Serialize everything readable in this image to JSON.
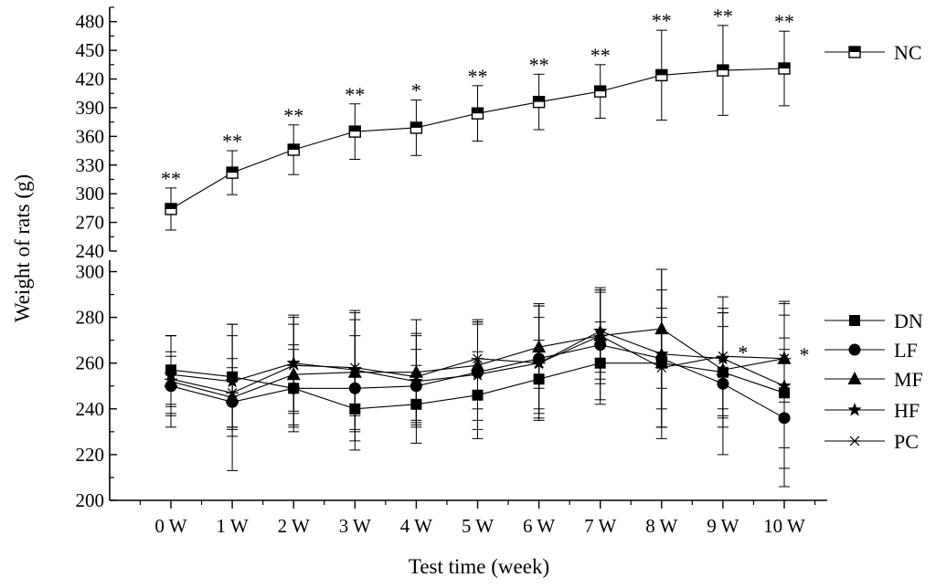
{
  "chart_data": {
    "type": "line",
    "xlabel": "Test time (week)",
    "ylabel": "Weight of rats (g)",
    "categories": [
      "0 W",
      "1 W",
      "2 W",
      "3 W",
      "4 W",
      "5 W",
      "6 W",
      "7 W",
      "8 W",
      "9 W",
      "10 W"
    ],
    "panels": [
      {
        "name": "upper",
        "ylim": [
          240,
          495
        ],
        "yticks": [
          240,
          270,
          300,
          330,
          360,
          390,
          420,
          450,
          480
        ],
        "series": [
          {
            "name": "NC",
            "marker": "half-square",
            "values": [
              284,
              322,
              346,
              365,
              369,
              384,
              396,
              407,
              424,
              429,
              431
            ],
            "errors": [
              22,
              23,
              26,
              29,
              29,
              29,
              29,
              28,
              47,
              47,
              39
            ],
            "significance": [
              "**",
              "**",
              "**",
              "**",
              "*",
              "**",
              "**",
              "**",
              "**",
              "**",
              "**"
            ]
          }
        ]
      },
      {
        "name": "lower",
        "ylim": [
          200,
          305
        ],
        "yticks": [
          200,
          220,
          240,
          260,
          280,
          300
        ],
        "series": [
          {
            "name": "DN",
            "marker": "square",
            "values": [
              257,
              254,
              249,
              240,
              242,
              246,
              253,
              260,
              260,
              256,
              247
            ],
            "errors": [
              15,
              23,
              19,
              18,
              17,
              19,
              17,
              18,
              20,
              20,
              24
            ]
          },
          {
            "name": "LF",
            "marker": "circle",
            "values": [
              250,
              243,
              249,
              249,
              250,
              256,
              262,
              268,
              262,
              251,
              236
            ],
            "errors": [
              13,
              15,
              17,
              23,
              16,
              21,
              24,
              24,
              30,
              31,
              30
            ]
          },
          {
            "name": "MF",
            "marker": "triangle",
            "values": [
              252,
              245,
              255,
              256,
              256,
              259,
              267,
              272,
              275,
              257,
              262
            ],
            "errors": [
              20,
              32,
              22,
              26,
              23,
              19,
              18,
              19,
              26,
              25,
              25
            ]
          },
          {
            "name": "HF",
            "marker": "star",
            "values": [
              255,
              252,
              260,
              257,
              252,
              255,
              260,
              274,
              264,
              262,
              250
            ],
            "errors": [
              17,
              20,
              21,
              26,
              20,
              24,
              25,
              18,
              37,
              22,
              36
            ]
          },
          {
            "name": "PC",
            "marker": "asterisk",
            "values": [
              253,
              247,
              259,
              258,
              254,
              262,
              260,
              272,
              258,
              263,
              262
            ],
            "errors": [
              12,
              15,
              21,
              21,
              19,
              16,
              20,
              21,
              26,
              26,
              19
            ]
          }
        ],
        "annotations": [
          {
            "category": "9 W",
            "value": 264,
            "text": "*"
          },
          {
            "category": "10 W",
            "value": 263,
            "text": "*"
          }
        ]
      }
    ],
    "legend": "right"
  }
}
